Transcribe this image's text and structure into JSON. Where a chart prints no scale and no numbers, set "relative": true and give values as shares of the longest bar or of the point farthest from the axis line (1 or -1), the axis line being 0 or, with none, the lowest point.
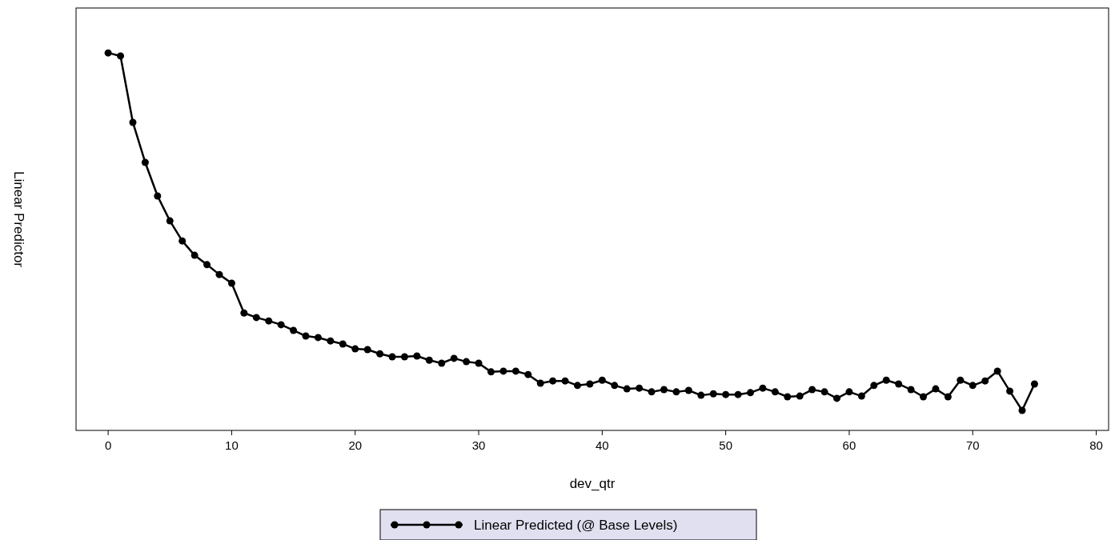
{
  "chart_data": {
    "type": "line",
    "xlabel": "dev_qtr",
    "ylabel": "Linear Predictor",
    "relative": true,
    "xlim": [
      -2.6,
      81
    ],
    "xticks": [
      0,
      10,
      20,
      30,
      40,
      50,
      60,
      70,
      80
    ],
    "grid": false,
    "legend": "bottom",
    "marker": "circle",
    "line_style": "solid",
    "x": [
      0,
      1,
      2,
      3,
      4,
      5,
      6,
      7,
      8,
      9,
      10,
      11,
      12,
      13,
      14,
      15,
      16,
      17,
      18,
      19,
      20,
      21,
      22,
      23,
      24,
      25,
      26,
      27,
      28,
      29,
      30,
      31,
      32,
      33,
      34,
      35,
      36,
      37,
      38,
      39,
      40,
      41,
      42,
      43,
      44,
      45,
      46,
      47,
      48,
      49,
      50,
      51,
      52,
      53,
      54,
      55,
      56,
      57,
      58,
      59,
      60,
      61,
      62,
      63,
      64,
      65,
      66,
      67,
      68,
      69,
      70,
      71,
      72,
      73,
      74,
      75
    ],
    "series": [
      {
        "name": "Linear Predicted (@ Base Levels)",
        "color": "#000000",
        "values": [
          1.0,
          0.992,
          0.816,
          0.71,
          0.621,
          0.555,
          0.502,
          0.464,
          0.439,
          0.413,
          0.39,
          0.311,
          0.299,
          0.29,
          0.28,
          0.265,
          0.25,
          0.246,
          0.237,
          0.229,
          0.216,
          0.214,
          0.203,
          0.195,
          0.195,
          0.197,
          0.186,
          0.178,
          0.191,
          0.182,
          0.178,
          0.155,
          0.157,
          0.157,
          0.148,
          0.125,
          0.131,
          0.131,
          0.119,
          0.123,
          0.133,
          0.119,
          0.11,
          0.112,
          0.102,
          0.108,
          0.102,
          0.106,
          0.093,
          0.097,
          0.095,
          0.095,
          0.1,
          0.112,
          0.102,
          0.089,
          0.091,
          0.108,
          0.102,
          0.085,
          0.102,
          0.091,
          0.119,
          0.133,
          0.123,
          0.108,
          0.089,
          0.11,
          0.089,
          0.133,
          0.119,
          0.131,
          0.157,
          0.104,
          0.053,
          0.123
        ]
      }
    ]
  }
}
